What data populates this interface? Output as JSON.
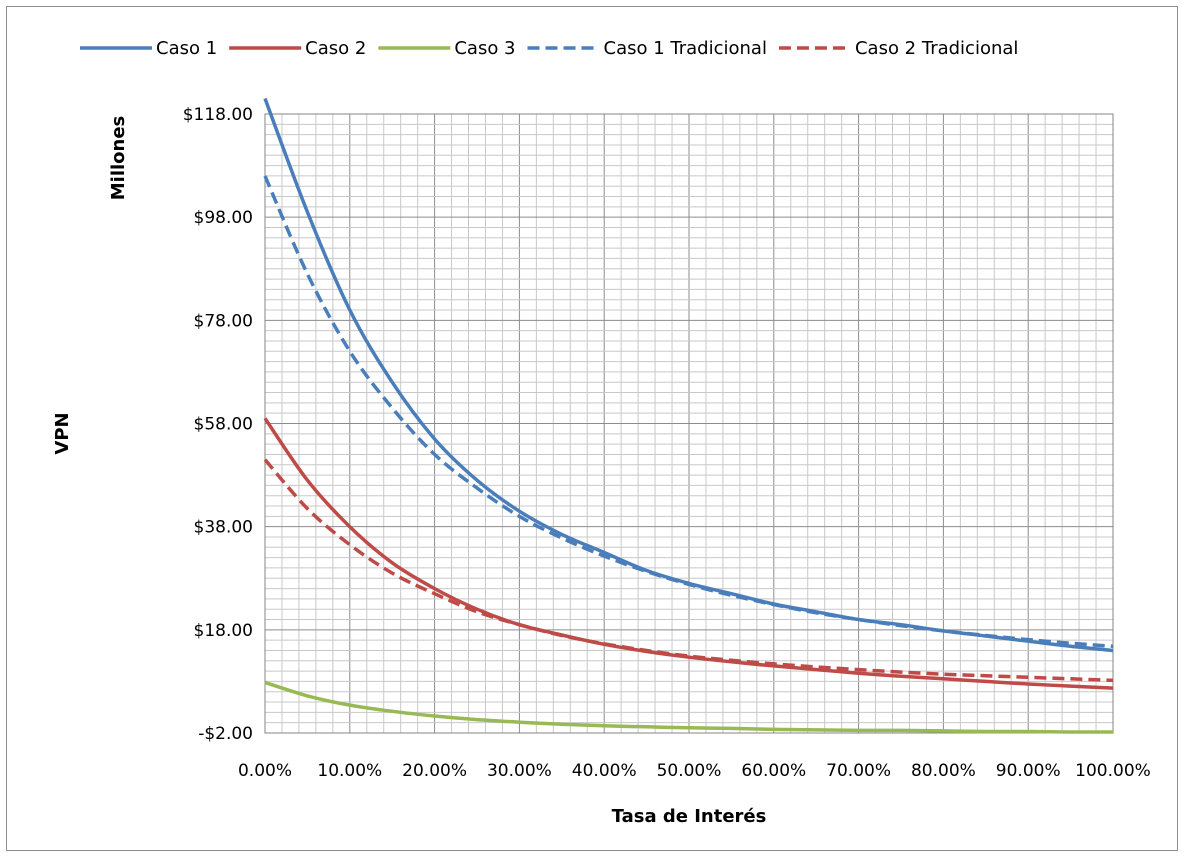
{
  "chart_data": {
    "type": "line",
    "title": "",
    "xlabel": "Tasa de Interés",
    "ylabel": "VPN",
    "yunit_label": "Millones",
    "xlim": [
      0,
      1
    ],
    "ylim": [
      -2,
      118
    ],
    "x_ticks": [
      "0.00%",
      "10.00%",
      "20.00%",
      "30.00%",
      "40.00%",
      "50.00%",
      "60.00%",
      "70.00%",
      "80.00%",
      "90.00%",
      "100.00%"
    ],
    "y_ticks": [
      "$118.00",
      "$98.00",
      "$78.00",
      "$58.00",
      "$38.00",
      "$18.00",
      "-$2.00"
    ],
    "grid": true,
    "legend_position": "top",
    "x": [
      0.0,
      0.05,
      0.1,
      0.15,
      0.2,
      0.25,
      0.3,
      0.35,
      0.4,
      0.45,
      0.5,
      0.55,
      0.6,
      0.65,
      0.7,
      0.75,
      0.8,
      0.85,
      0.9,
      0.95,
      1.0
    ],
    "series": [
      {
        "name": "Caso 1",
        "color": "#4a7ebb",
        "dash": false,
        "values": [
          121,
          99,
          80,
          66,
          55,
          47,
          41,
          36.5,
          33,
          29.5,
          27,
          25,
          23,
          21.5,
          20,
          19,
          17.8,
          16.8,
          15.8,
          14.8,
          14
        ]
      },
      {
        "name": "Caso 2",
        "color": "#be4b48",
        "dash": false,
        "values": [
          59,
          47,
          38,
          31,
          26,
          22,
          19,
          17,
          15.2,
          13.8,
          12.7,
          11.8,
          11,
          10.3,
          9.6,
          9,
          8.5,
          8,
          7.5,
          7.1,
          6.7
        ]
      },
      {
        "name": "Caso 3",
        "color": "#98b954",
        "dash": false,
        "values": [
          7.8,
          5.2,
          3.4,
          2.2,
          1.3,
          0.6,
          0.1,
          -0.3,
          -0.6,
          -0.8,
          -1.0,
          -1.1,
          -1.3,
          -1.4,
          -1.5,
          -1.5,
          -1.6,
          -1.7,
          -1.7,
          -1.8,
          -1.8
        ]
      },
      {
        "name": "Caso 1 Tradicional",
        "color": "#4a7ebb",
        "dash": true,
        "values": [
          106,
          87,
          72,
          61,
          52,
          45.5,
          40,
          35.8,
          32.3,
          29.3,
          26.8,
          24.7,
          22.9,
          21.3,
          20,
          18.8,
          17.8,
          16.9,
          16.1,
          15.4,
          14.8
        ]
      },
      {
        "name": "Caso 2 Tradicional",
        "color": "#be4b48",
        "dash": true,
        "values": [
          51,
          41.5,
          34.5,
          29,
          25,
          21.5,
          19,
          16.9,
          15.3,
          14,
          12.9,
          12.1,
          11.4,
          10.8,
          10.3,
          9.8,
          9.4,
          9.1,
          8.8,
          8.5,
          8.2
        ]
      }
    ]
  }
}
